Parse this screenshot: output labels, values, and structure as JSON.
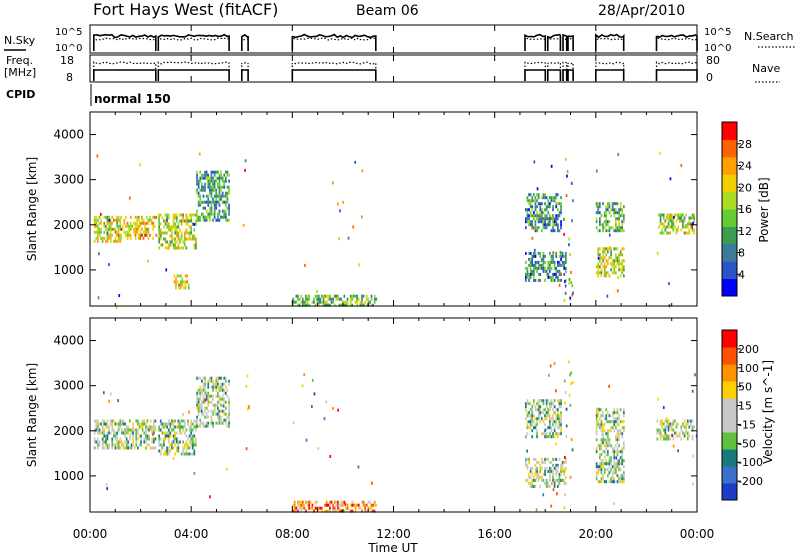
{
  "header": {
    "station": "Fort Hays West (fitACF)",
    "beam": "Beam 06",
    "date": "28/Apr/2010"
  },
  "panels": {
    "nsky_label": "N.Sky",
    "nsky_ticks": [
      "10^5",
      "10^0"
    ],
    "nsearch_label": "N.Search",
    "nsearch_ticks": [
      "10^5",
      "10^0"
    ],
    "freq_label_1": "Freq.",
    "freq_label_2": "[MHz]",
    "freq_ticks": [
      "18",
      "8"
    ],
    "nave_label": "Nave",
    "nave_ticks": [
      "80",
      "0"
    ],
    "cpid_label": "CPID",
    "cpid_value": "normal 150"
  },
  "chart_data": [
    {
      "type": "heatmap",
      "name": "power",
      "ylabel": "Slant Range [km]",
      "yticks": [
        "4000",
        "3000",
        "2000",
        "1000"
      ],
      "ylim": [
        200,
        4500
      ],
      "colorbar_label": "Power [dB]",
      "colorbar_ticks": [
        "28",
        "24",
        "20",
        "16",
        "12",
        "8",
        "4"
      ],
      "colors": [
        "#0000ff",
        "#2a55c8",
        "#3c7a9a",
        "#3c9c50",
        "#66cc33",
        "#aadd22",
        "#f0d000",
        "#ffa000",
        "#ff6000",
        "#ff0000"
      ],
      "regions": [
        {
          "t0": 0.15,
          "t1": 1.2,
          "r0": 1650,
          "r1": 2200,
          "level": 0.6
        },
        {
          "t0": 1.2,
          "t1": 2.6,
          "r0": 1700,
          "r1": 2200,
          "level": 0.7
        },
        {
          "t0": 2.7,
          "t1": 4.2,
          "r0": 1500,
          "r1": 2250,
          "level": 0.55
        },
        {
          "t0": 4.2,
          "t1": 5.5,
          "r0": 2100,
          "r1": 3200,
          "level": 0.35
        },
        {
          "t0": 3.3,
          "t1": 3.9,
          "r0": 600,
          "r1": 900,
          "level": 0.6
        },
        {
          "t0": 8.0,
          "t1": 11.3,
          "r0": 200,
          "r1": 450,
          "level": 0.45
        },
        {
          "t0": 17.2,
          "t1": 18.6,
          "r0": 1900,
          "r1": 2700,
          "level": 0.3
        },
        {
          "t0": 17.2,
          "t1": 18.8,
          "r0": 800,
          "r1": 1400,
          "level": 0.3
        },
        {
          "t0": 20.0,
          "t1": 21.1,
          "r0": 1900,
          "r1": 2500,
          "level": 0.4
        },
        {
          "t0": 20.0,
          "t1": 21.1,
          "r0": 900,
          "r1": 1500,
          "level": 0.55
        },
        {
          "t0": 22.4,
          "t1": 23.9,
          "r0": 1850,
          "r1": 2250,
          "level": 0.5
        }
      ]
    },
    {
      "type": "heatmap",
      "name": "velocity",
      "ylabel": "Slant Range [km]",
      "yticks": [
        "4000",
        "3000",
        "2000",
        "1000"
      ],
      "ylim": [
        200,
        4500
      ],
      "colorbar_label": "Velocity [m s^-1]",
      "colorbar_ticks": [
        "200",
        "100",
        "50",
        "15",
        "-15",
        "-50",
        "-100",
        "-200"
      ],
      "colors": [
        "#1a3cc8",
        "#3a70c8",
        "#1a7a7a",
        "#60c040",
        "#c8c8c8",
        "#c8c8c8",
        "#ffd000",
        "#ff9000",
        "#ff5000",
        "#ff0000"
      ],
      "regions": [
        {
          "t0": 0.15,
          "t1": 2.6,
          "r0": 1650,
          "r1": 2250,
          "level": 0.45
        },
        {
          "t0": 2.7,
          "t1": 4.2,
          "r0": 1500,
          "r1": 2250,
          "level": 0.45
        },
        {
          "t0": 4.2,
          "t1": 5.5,
          "r0": 2100,
          "r1": 3200,
          "level": 0.45
        },
        {
          "t0": 8.0,
          "t1": 11.3,
          "r0": 200,
          "r1": 450,
          "level": 0.75
        },
        {
          "t0": 17.2,
          "t1": 18.6,
          "r0": 1900,
          "r1": 2700,
          "level": 0.45
        },
        {
          "t0": 17.2,
          "t1": 18.8,
          "r0": 800,
          "r1": 1400,
          "level": 0.45
        },
        {
          "t0": 20.0,
          "t1": 21.1,
          "r0": 900,
          "r1": 2500,
          "level": 0.45
        },
        {
          "t0": 22.4,
          "t1": 23.9,
          "r0": 1850,
          "r1": 2250,
          "level": 0.45
        }
      ]
    }
  ],
  "time_axis": {
    "xlabel": "Time UT",
    "xticks": [
      "00:00",
      "04:00",
      "08:00",
      "12:00",
      "16:00",
      "20:00",
      "00:00"
    ],
    "xlim": [
      0,
      24
    ]
  },
  "data_intervals": [
    [
      0.15,
      2.6
    ],
    [
      2.7,
      5.5
    ],
    [
      6.0,
      6.25
    ],
    [
      8.0,
      11.3
    ],
    [
      17.2,
      18.0
    ],
    [
      18.1,
      18.6
    ],
    [
      18.7,
      18.85
    ],
    [
      18.9,
      19.1
    ],
    [
      20.0,
      21.1
    ],
    [
      22.4,
      24.0
    ]
  ]
}
